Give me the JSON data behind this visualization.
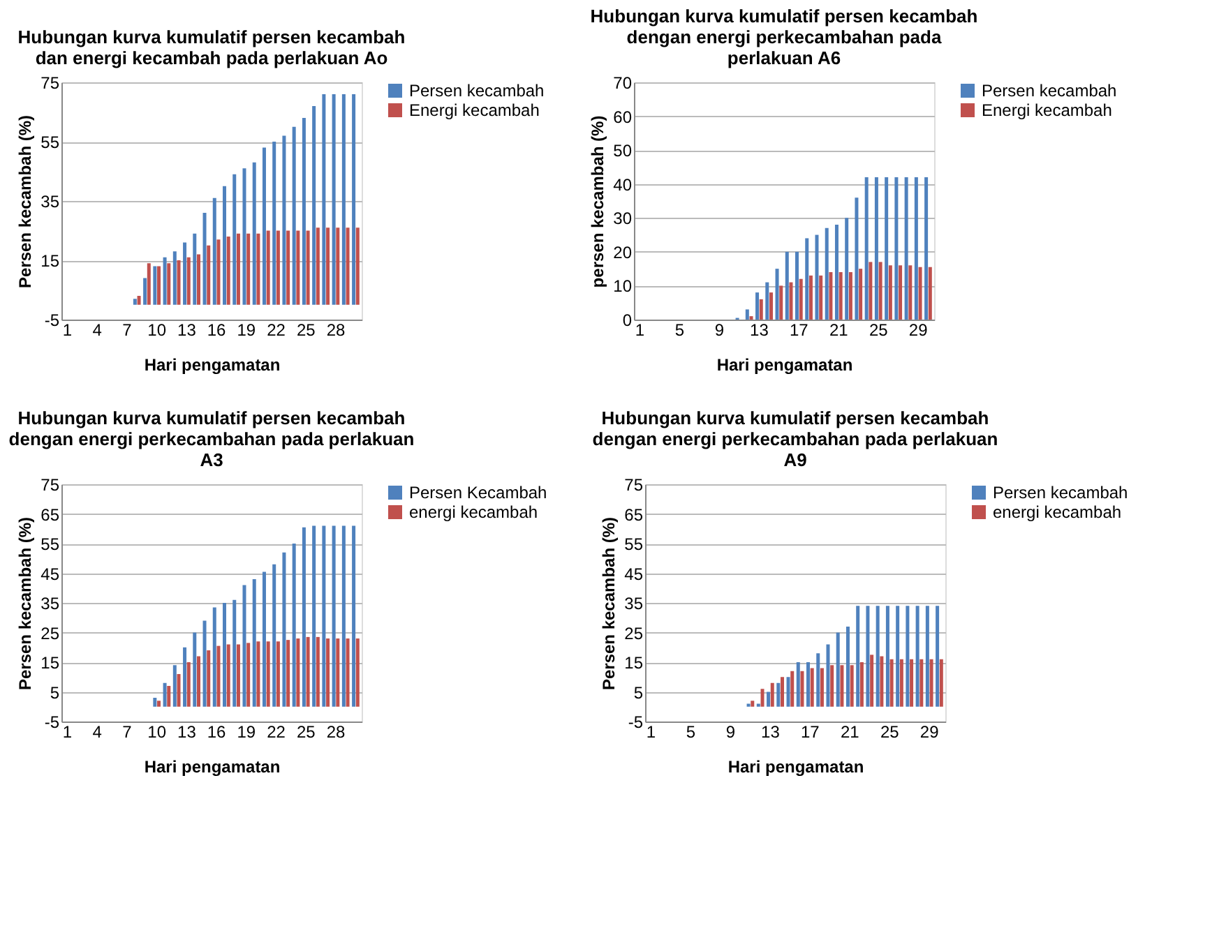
{
  "chart_data": [
    {
      "type": "bar",
      "title": "Hubungan kurva kumulatif persen kecambah dan energi kecambah pada perlakuan Ao",
      "xlabel": "Hari  pengamatan",
      "ylabel": "Persen kecambah (%)",
      "categories": [
        "1",
        null,
        null,
        "4",
        null,
        null,
        "7",
        null,
        null,
        "10",
        null,
        null,
        "13",
        null,
        null,
        "16",
        null,
        null,
        "19",
        null,
        null,
        "22",
        null,
        null,
        "25",
        null,
        null,
        "28",
        null,
        null
      ],
      "series": [
        {
          "name": "Persen kecambah",
          "color": "#4f81bd",
          "values": [
            0,
            0,
            0,
            0,
            0,
            0,
            0,
            2,
            9,
            13,
            16,
            18,
            21,
            24,
            31,
            36,
            40,
            44,
            46,
            48,
            53,
            55,
            57,
            60,
            63,
            67,
            71,
            71,
            71,
            71
          ]
        },
        {
          "name": "Energi kecambah",
          "color": "#c0504d",
          "values": [
            0,
            0,
            0,
            0,
            0,
            0,
            0,
            3,
            14,
            13,
            14,
            15,
            16,
            17,
            20,
            22,
            23,
            24,
            24,
            24,
            25,
            25,
            25,
            25,
            25,
            26,
            26,
            26,
            26,
            26
          ]
        }
      ],
      "ylim": [
        -5,
        75
      ],
      "yticks": [
        -5,
        15,
        35,
        55,
        75
      ],
      "grid": "y",
      "legend": "right"
    },
    {
      "type": "bar",
      "title": "Hubungan kurva kumulatif persen kecambah dengan energi perkecambahan  pada perlakuan  A6",
      "xlabel": "Hari pengamatan",
      "ylabel": "persen kecambah (%)",
      "categories": [
        "1",
        null,
        null,
        null,
        "5",
        null,
        null,
        null,
        "9",
        null,
        null,
        null,
        "13",
        null,
        null,
        null,
        "17",
        null,
        null,
        null,
        "21",
        null,
        null,
        null,
        "25",
        null,
        null,
        null,
        "29",
        null
      ],
      "series": [
        {
          "name": "Persen kecambah",
          "color": "#4f81bd",
          "values": [
            0,
            0,
            0,
            0,
            0,
            0,
            0,
            0,
            0,
            0,
            0.5,
            3,
            8,
            11,
            15,
            20,
            20,
            24,
            25,
            27,
            28,
            30,
            36,
            42,
            42,
            42,
            42,
            42,
            42,
            42
          ]
        },
        {
          "name": "Energi kecambah",
          "color": "#c0504d",
          "values": [
            0,
            0,
            0,
            0,
            0,
            0,
            0,
            0,
            0,
            0,
            0,
            1,
            6,
            8,
            10,
            11,
            12,
            13,
            13,
            14,
            14,
            14,
            15,
            17,
            17,
            16,
            16,
            16,
            15.5,
            15.5
          ]
        }
      ],
      "ylim": [
        0,
        70
      ],
      "yticks": [
        0,
        10,
        20,
        30,
        40,
        50,
        60,
        70
      ],
      "grid": "y",
      "legend": "right"
    },
    {
      "type": "bar",
      "title": "Hubungan kurva kumulatif persen kecambah dengan energi perkecambahan pada perlakuan A3",
      "xlabel": "Hari pengamatan",
      "ylabel": "Persen kecambah (%)",
      "categories": [
        "1",
        null,
        null,
        "4",
        null,
        null,
        "7",
        null,
        null,
        "10",
        null,
        null,
        "13",
        null,
        null,
        "16",
        null,
        null,
        "19",
        null,
        null,
        "22",
        null,
        null,
        "25",
        null,
        null,
        "28",
        null,
        null
      ],
      "series": [
        {
          "name": "Persen Kecambah",
          "color": "#4f81bd",
          "values": [
            0,
            0,
            0,
            0,
            0,
            0,
            0,
            0,
            0,
            3,
            8,
            14,
            20,
            25,
            29,
            33.5,
            35,
            36,
            41,
            43,
            45.5,
            48,
            52,
            55,
            60.5,
            61,
            61,
            61,
            61,
            61
          ]
        },
        {
          "name": "energi kecambah",
          "color": "#c0504d",
          "values": [
            0,
            0,
            0,
            0,
            0,
            0,
            0,
            0,
            0,
            2,
            7,
            11,
            15,
            17,
            19,
            20.5,
            21,
            21,
            21.5,
            22,
            22,
            22,
            22.5,
            23,
            23.5,
            23.5,
            23,
            23,
            23,
            23
          ]
        }
      ],
      "ylim": [
        -5,
        75
      ],
      "yticks": [
        -5,
        5,
        15,
        25,
        35,
        45,
        55,
        65,
        75
      ],
      "grid": "y",
      "legend": "right"
    },
    {
      "type": "bar",
      "title": "Hubungan kurva kumulatif persen kecambah dengan energi perkecambahan pada perlakuan A9",
      "xlabel": "Hari pengamatan",
      "ylabel": "Persen kecambah (%)",
      "categories": [
        "1",
        null,
        null,
        null,
        "5",
        null,
        null,
        null,
        "9",
        null,
        null,
        null,
        "13",
        null,
        null,
        null,
        "17",
        null,
        null,
        null,
        "21",
        null,
        null,
        null,
        "25",
        null,
        null,
        null,
        "29",
        null
      ],
      "series": [
        {
          "name": "Persen kecambah",
          "color": "#4f81bd",
          "values": [
            0,
            0,
            0,
            0,
            0,
            0,
            0,
            0,
            0,
            0,
            1,
            1,
            5,
            8,
            10,
            15,
            15,
            18,
            21,
            25,
            27,
            34,
            34,
            34,
            34,
            34,
            34,
            34,
            34,
            34
          ]
        },
        {
          "name": "energi kecambah",
          "color": "#c0504d",
          "values": [
            0,
            0,
            0,
            0,
            0,
            0,
            0,
            0,
            0,
            0,
            2,
            6,
            8,
            10,
            12,
            12,
            13,
            13,
            14,
            14,
            14,
            15,
            17.5,
            17,
            16,
            16,
            16,
            16,
            16,
            16
          ]
        }
      ],
      "ylim": [
        -5,
        75
      ],
      "yticks": [
        -5,
        5,
        15,
        25,
        35,
        45,
        55,
        65,
        75
      ],
      "grid": "y",
      "legend": "right"
    }
  ]
}
